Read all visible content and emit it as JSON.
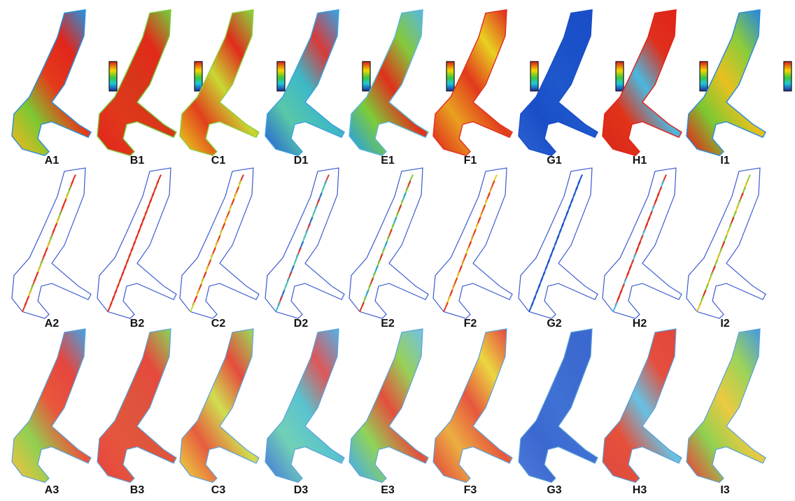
{
  "panels": [
    [
      "A1",
      "B1",
      "C1",
      "D1",
      "E1",
      "F1",
      "G1",
      "H1",
      "I1"
    ],
    [
      "A2",
      "B2",
      "C2",
      "D2",
      "E2",
      "F2",
      "G2",
      "H2",
      "I2"
    ],
    [
      "A3",
      "B3",
      "C3",
      "D3",
      "E3",
      "F3",
      "G3",
      "H3",
      "I3"
    ]
  ]
}
